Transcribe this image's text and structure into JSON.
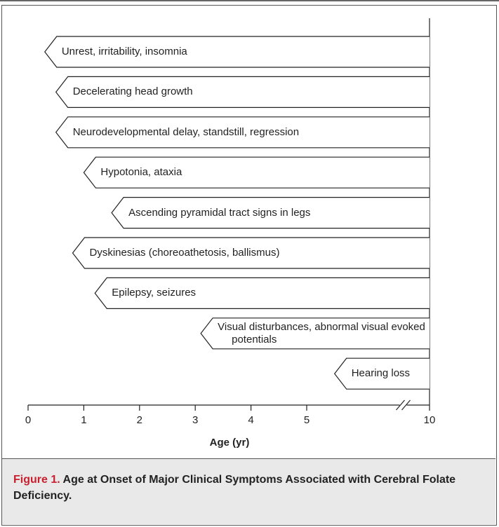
{
  "chart_data": {
    "type": "onset-arrow",
    "categories": [
      "Unrest, irritability, insomnia",
      "Decelerating head growth",
      "Neurodevelopmental delay, standstill, regression",
      "Hypotonia, ataxia",
      "Ascending pyramidal tract signs in legs",
      "Dyskinesias (choreoathetosis, ballismus)",
      "Epilepsy, seizures",
      "Visual disturbances, abnormal visual evoked potentials",
      "Hearing loss"
    ],
    "values": [
      0.3,
      0.5,
      0.5,
      1.0,
      1.5,
      0.8,
      1.2,
      3.1,
      5.5
    ],
    "xlim": [
      0,
      10
    ],
    "xticks": [
      0,
      1,
      2,
      3,
      4,
      5,
      10
    ],
    "axis_break": true,
    "xlabel": "Age (yr)",
    "caption_label": "Figure 1.",
    "caption": "Age at Onset of Major Clinical Symptoms Associated with Cerebral Folate Deficiency."
  }
}
